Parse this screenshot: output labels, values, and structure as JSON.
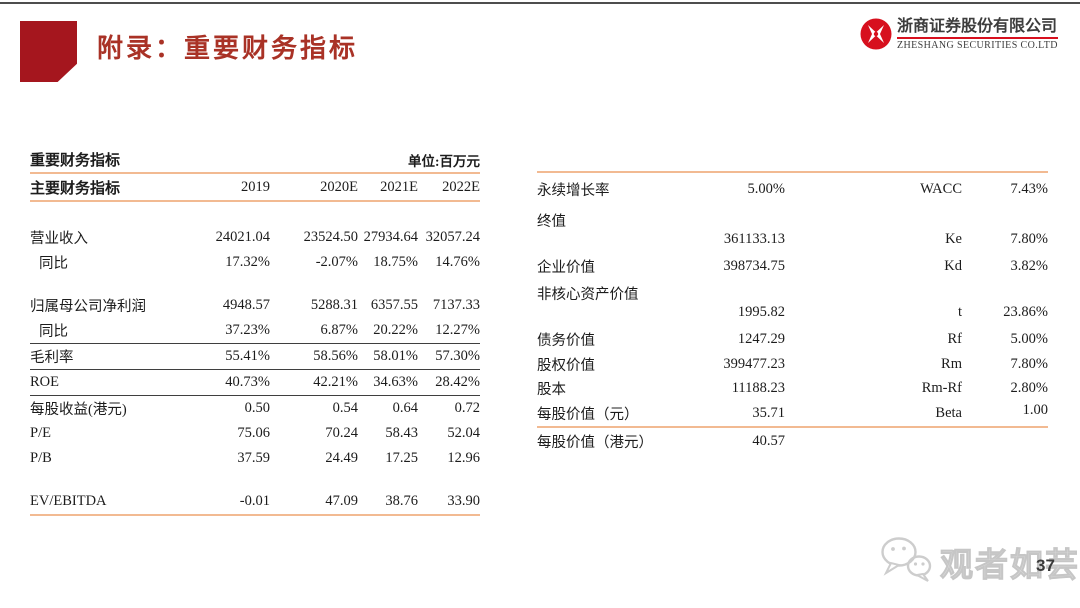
{
  "slide": {
    "title": "附录：重要财务指标",
    "page_number": "37",
    "watermark_text": "观者如芸",
    "logo": {
      "company_cn": "浙商证券股份有限公司",
      "company_en": "ZHESHANG SECURITIES CO.LTD"
    }
  },
  "icons": {
    "brand_icon": "zheshang-logo-icon",
    "watermark_icon": "wechat-icon"
  },
  "colors": {
    "accent_red": "#a5161e",
    "title_red": "#a93226",
    "logo_red": "#d7101e",
    "line_orange": "#f2ba92",
    "line_dark": "#3f3f3f",
    "watermark_gray": "#d8d8d8"
  },
  "metrics_table": {
    "title": "重要财务指标",
    "unit_label": "单位:百万元",
    "columns": [
      "主要财务指标",
      "2019",
      "2020E",
      "2021E",
      "2022E"
    ],
    "rows": [
      {
        "spacer": "lg"
      },
      {
        "label": "营业收入",
        "values": [
          "24021.04",
          "23524.50",
          "27934.64",
          "32057.24"
        ]
      },
      {
        "label": "同比",
        "indent": true,
        "values": [
          "17.32%",
          "-2.07%",
          "18.75%",
          "14.76%"
        ]
      },
      {
        "spacer": "md"
      },
      {
        "label": "归属母公司净利润",
        "values": [
          "4948.57",
          "5288.31",
          "6357.55",
          "7137.33"
        ]
      },
      {
        "label": "同比",
        "indent": true,
        "rule": "dark",
        "values": [
          "37.23%",
          "6.87%",
          "20.22%",
          "12.27%"
        ]
      },
      {
        "label": "毛利率",
        "rule": "dark",
        "values": [
          "55.41%",
          "58.56%",
          "58.01%",
          "57.30%"
        ]
      },
      {
        "label": "ROE",
        "rule": "dark",
        "values": [
          "40.73%",
          "42.21%",
          "34.63%",
          "28.42%"
        ]
      },
      {
        "label": "每股收益(港元)",
        "values": [
          "0.50",
          "0.54",
          "0.64",
          "0.72"
        ]
      },
      {
        "label": "P/E",
        "values": [
          "75.06",
          "70.24",
          "58.43",
          "52.04"
        ]
      },
      {
        "label": "P/B",
        "values": [
          "37.59",
          "24.49",
          "17.25",
          "12.96"
        ]
      },
      {
        "spacer": "md"
      },
      {
        "label": "EV/EBITDA",
        "rule": "orange",
        "values": [
          "-0.01",
          "47.09",
          "38.76",
          "33.90"
        ]
      }
    ]
  },
  "valuation_table": {
    "rows": [
      {
        "label": "永续增长率",
        "value": "5.00%",
        "label2": "WACC",
        "value2": "7.43%"
      },
      {
        "label": "终值",
        "value": "361133.13",
        "label2": "Ke",
        "value2": "7.80%",
        "stagger": true
      },
      {
        "label": "企业价值",
        "value": "398734.75",
        "label2": "Kd",
        "value2": "3.82%"
      },
      {
        "label": "非核心资产价值",
        "value": "1995.82",
        "label2": "t",
        "value2": "23.86%",
        "stagger": true
      },
      {
        "label": "债务价值",
        "value": "1247.29",
        "label2": "Rf",
        "value2": "5.00%"
      },
      {
        "label": "股权价值",
        "value": "399477.23",
        "label2": "Rm",
        "value2": "7.80%"
      },
      {
        "label": "股本",
        "value": "11188.23",
        "label2": "Rm-Rf",
        "value2": "2.80%"
      },
      {
        "label": "每股价值（元）",
        "value": "35.71",
        "label2": "Beta",
        "value2": "1.00",
        "rule": "orange"
      },
      {
        "label": "每股价值（港元）",
        "value": "40.57",
        "label2": "",
        "value2": ""
      }
    ]
  }
}
